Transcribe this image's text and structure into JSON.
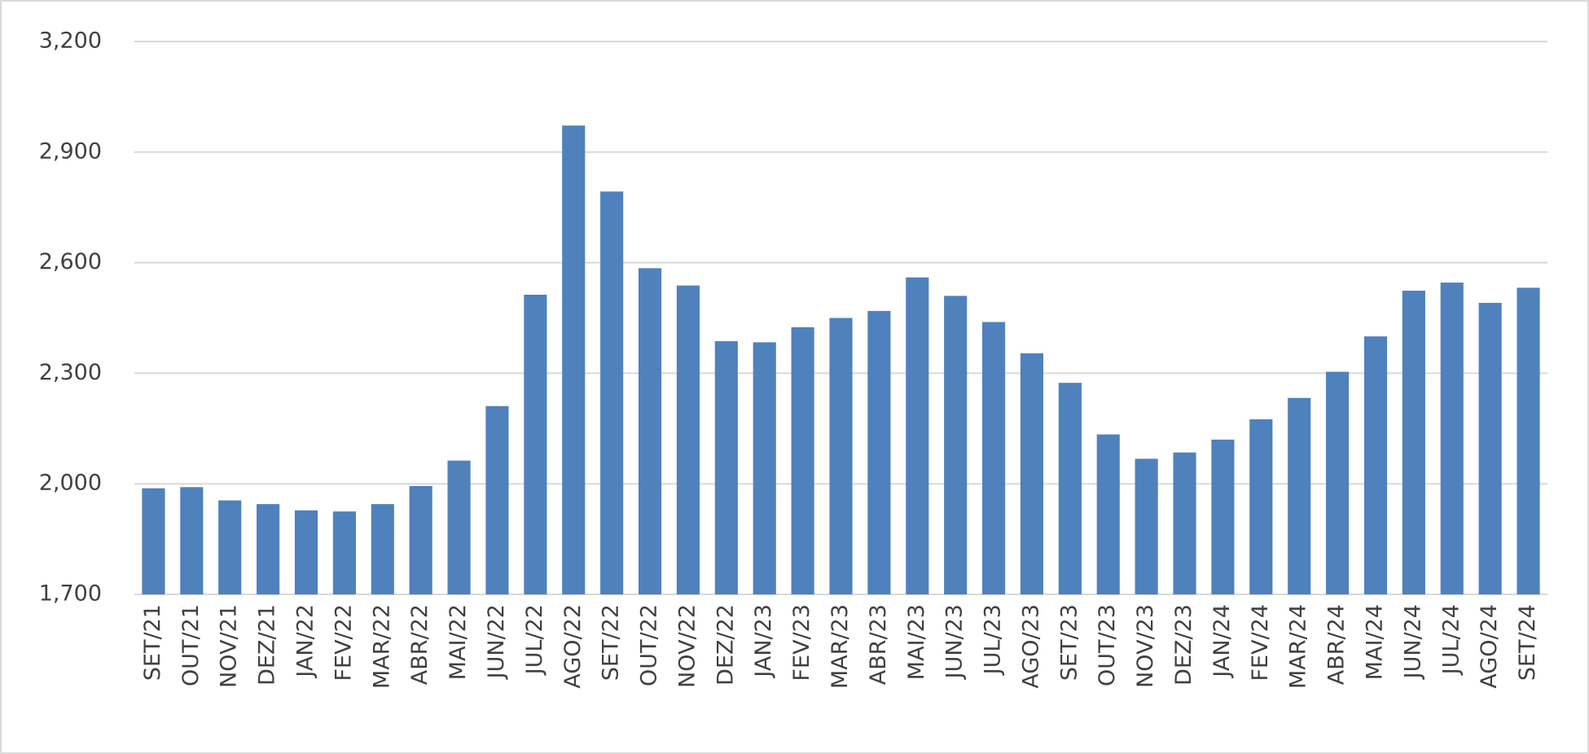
{
  "chart_data": {
    "type": "bar",
    "categories": [
      "SET/21",
      "OUT/21",
      "NOV/21",
      "DEZ/21",
      "JAN/22",
      "FEV/22",
      "MAR/22",
      "ABR/22",
      "MAI/22",
      "JUN/22",
      "JUL/22",
      "AGO/22",
      "SET/22",
      "OUT/22",
      "NOV/22",
      "DEZ/22",
      "JAN/23",
      "FEV/23",
      "MAR/23",
      "ABR/23",
      "MAI/23",
      "JUN/23",
      "JUL/23",
      "AGO/23",
      "SET/23",
      "OUT/23",
      "NOV/23",
      "DEZ/23",
      "JAN/24",
      "FEV/24",
      "MAR/24",
      "ABR/24",
      "MAI/24",
      "JUN/24",
      "JUL/24",
      "AGO/24",
      "SET/24"
    ],
    "values": [
      1988,
      1991,
      1955,
      1945,
      1928,
      1925,
      1945,
      1994,
      2063,
      2211,
      2513,
      2972,
      2793,
      2585,
      2538,
      2387,
      2384,
      2425,
      2450,
      2469,
      2560,
      2510,
      2439,
      2354,
      2274,
      2134,
      2068,
      2085,
      2120,
      2175,
      2233,
      2304,
      2400,
      2524,
      2546,
      2491,
      2532
    ],
    "color": "#4f81bd",
    "ylim": [
      1700,
      3200
    ],
    "yticks": [
      {
        "value": 1700,
        "label": "1,700"
      },
      {
        "value": 2000,
        "label": "2,000"
      },
      {
        "value": 2300,
        "label": "2,300"
      },
      {
        "value": 2600,
        "label": "2,600"
      },
      {
        "value": 2900,
        "label": "2,900"
      },
      {
        "value": 3200,
        "label": "3,200"
      }
    ],
    "grid": true
  }
}
